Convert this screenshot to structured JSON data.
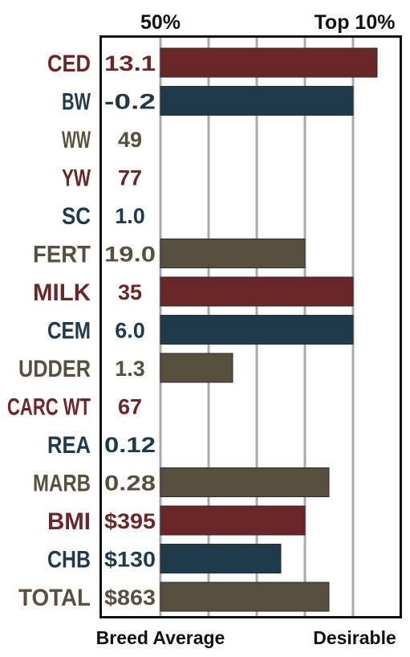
{
  "chart_data": {
    "type": "bar",
    "orientation": "horizontal",
    "top_labels": [
      "50%",
      "Top 10%"
    ],
    "bottom_labels": [
      "Breed Average",
      "Desirable"
    ],
    "grid": true,
    "colors": {
      "red": "#6b2628",
      "blue": "#1f3a4b",
      "gray": "#57503f",
      "gridline": "#a9a9b0",
      "frame": "#111111"
    },
    "categories": [
      "CED",
      "BW",
      "WW",
      "YW",
      "SC",
      "FERT",
      "MILK",
      "CEM",
      "UDDER",
      "CARC WT",
      "REA",
      "MARB",
      "BMI",
      "CHB",
      "TOTAL"
    ],
    "value_labels": [
      "13.1",
      "-0.2",
      "49",
      "77",
      "1.0",
      "19.0",
      "35",
      "6.0",
      "1.3",
      "67",
      "0.12",
      "0.28",
      "$395",
      "$130",
      "$863"
    ],
    "category_colors": [
      "red",
      "blue",
      "gray",
      "red",
      "blue",
      "gray",
      "red",
      "blue",
      "gray",
      "red",
      "blue",
      "gray",
      "red",
      "blue",
      "gray"
    ],
    "values": [
      0.9,
      0.8,
      0,
      0,
      0,
      0.6,
      0.8,
      0.8,
      0.3,
      0,
      0,
      0.7,
      0.6,
      0.5,
      0.7
    ],
    "xlim": [
      0,
      1
    ]
  }
}
